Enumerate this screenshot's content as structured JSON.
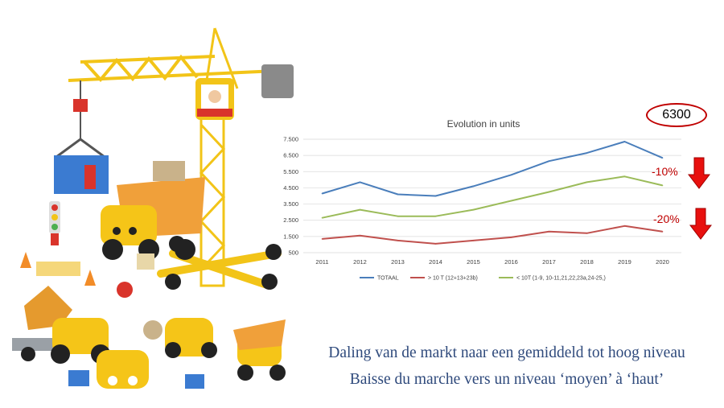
{
  "callout": {
    "total": "6300"
  },
  "annotations": [
    {
      "text": "-10%",
      "color": "#c00000",
      "icon": "red-down-arrow-icon"
    },
    {
      "text": "-20%",
      "color": "#c00000",
      "icon": "red-down-arrow-icon"
    }
  ],
  "caption": {
    "line1": "Daling van de markt naar een gemiddeld tot hoog niveau",
    "line2": "Baisse du marche vers un niveau ‘moyen’ à ‘haut’"
  },
  "image": {
    "subject": "toy construction crane and trucks",
    "icon": "toy-construction-set-image"
  },
  "chart_data": {
    "type": "line",
    "title": "Evolution in units",
    "xlabel": "",
    "ylabel": "",
    "x": [
      "2011",
      "2012",
      "2013",
      "2014",
      "2015",
      "2016",
      "2017",
      "2018",
      "2019",
      "2020"
    ],
    "yticks": [
      "500",
      "1.500",
      "2.500",
      "3.500",
      "4.500",
      "5.500",
      "6.500",
      "7.500"
    ],
    "ylim": [
      500,
      7500
    ],
    "grid": true,
    "legend_position": "bottom",
    "series": [
      {
        "name": "TOTAAL",
        "color": "#4a7ebb",
        "values": [
          4150,
          4850,
          4100,
          4000,
          4600,
          5300,
          6150,
          6650,
          7350,
          6350
        ]
      },
      {
        "name": "> 10 T (12+13+23b)",
        "color": "#c0504d",
        "values": [
          1350,
          1550,
          1250,
          1050,
          1250,
          1450,
          1800,
          1700,
          2150,
          1800
        ]
      },
      {
        "name": "< 10T (1-9, 10-11,21,22,23a,24-25,)",
        "color": "#9bbb59",
        "values": [
          2650,
          3150,
          2750,
          2750,
          3150,
          3700,
          4250,
          4850,
          5200,
          4650
        ]
      }
    ]
  }
}
